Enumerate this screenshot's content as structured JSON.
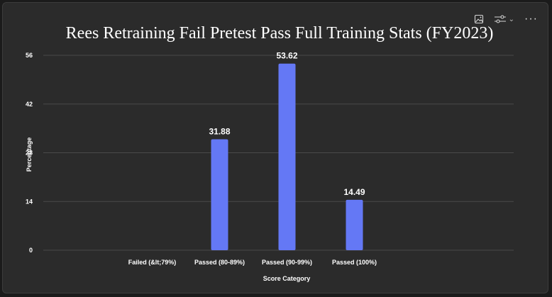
{
  "toolbar": {
    "image_icon": "image-icon",
    "filter_icon": "sliders-icon",
    "dropdown_icon": "chevron-down-icon",
    "more_label": "···"
  },
  "chart_data": {
    "type": "bar",
    "title": "Rees Retraining Fail Pretest Pass Full Training Stats (FY2023)",
    "xlabel": "Score Category",
    "ylabel": "Percentage",
    "categories": [
      "Failed (&lt;79%)",
      "Passed (80-89%)",
      "Passed (90-99%)",
      "Passed (100%)"
    ],
    "values": [
      0,
      31.88,
      53.62,
      14.49
    ],
    "data_labels": [
      "",
      "31.88",
      "53.62",
      "14.49"
    ],
    "ylim": [
      0,
      56
    ],
    "yticks": [
      "0",
      "14",
      "28",
      "42",
      "56"
    ],
    "grid": true,
    "bar_color": "#6478f5",
    "gridline_color": "#4a4a4a",
    "background_color": "#2b2b2b"
  }
}
